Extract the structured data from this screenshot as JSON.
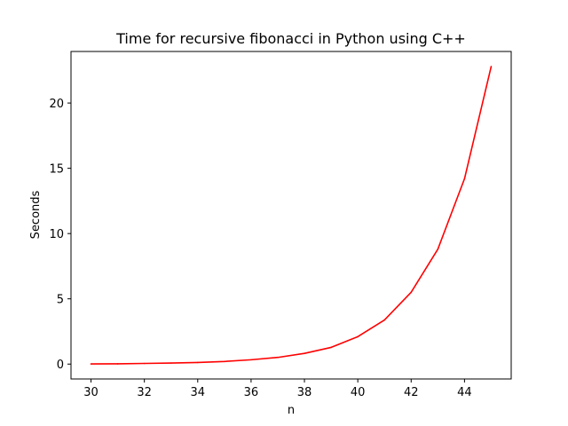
{
  "chart_data": {
    "type": "line",
    "title": "Time for recursive fibonacci in Python using C++",
    "xlabel": "n",
    "ylabel": "Seconds",
    "x": [
      30,
      31,
      32,
      33,
      34,
      35,
      36,
      37,
      38,
      39,
      40,
      41,
      42,
      43,
      44,
      45
    ],
    "series": [
      {
        "values": [
          0.01,
          0.02,
          0.05,
          0.08,
          0.12,
          0.2,
          0.33,
          0.51,
          0.82,
          1.28,
          2.1,
          3.38,
          5.5,
          8.8,
          14.2,
          22.8
        ],
        "color": "#ff0000"
      }
    ],
    "xlim": [
      29.25,
      45.75
    ],
    "ylim": [
      -1.14,
      23.95
    ],
    "xticks": [
      "30",
      "32",
      "34",
      "36",
      "38",
      "40",
      "42",
      "44"
    ],
    "yticks": [
      "0",
      "5",
      "10",
      "15",
      "20"
    ],
    "grid": false,
    "legend": "none"
  }
}
